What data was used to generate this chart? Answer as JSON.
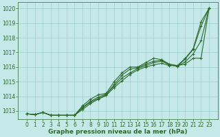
{
  "x": [
    0,
    1,
    2,
    3,
    4,
    5,
    6,
    7,
    8,
    9,
    10,
    11,
    12,
    13,
    14,
    15,
    16,
    17,
    18,
    19,
    20,
    21,
    22,
    23
  ],
  "line1": [
    1012.8,
    1012.75,
    1012.9,
    1012.7,
    1012.7,
    1012.7,
    1012.7,
    1013.35,
    1013.8,
    1014.1,
    1014.2,
    1015.0,
    1015.6,
    1016.0,
    1016.0,
    1016.3,
    1016.6,
    1016.5,
    1016.2,
    1016.1,
    1016.6,
    1017.25,
    1019.1,
    1020.0
  ],
  "line2": [
    1012.8,
    1012.75,
    1012.9,
    1012.7,
    1012.7,
    1012.7,
    1012.7,
    1013.2,
    1013.6,
    1013.85,
    1014.1,
    1014.8,
    1015.45,
    1015.85,
    1015.95,
    1016.2,
    1016.4,
    1016.45,
    1016.15,
    1016.05,
    1016.55,
    1017.2,
    1018.8,
    1020.0
  ],
  "line3": [
    1012.8,
    1012.75,
    1012.9,
    1012.7,
    1012.7,
    1012.7,
    1012.7,
    1013.1,
    1013.5,
    1013.8,
    1014.05,
    1014.6,
    1015.05,
    1015.5,
    1015.8,
    1016.0,
    1016.15,
    1016.25,
    1016.1,
    1016.1,
    1016.2,
    1016.6,
    1016.6,
    1020.0
  ],
  "line4": [
    1012.8,
    1012.75,
    1012.9,
    1012.7,
    1012.7,
    1012.7,
    1012.7,
    1013.25,
    1013.65,
    1013.95,
    1014.15,
    1014.7,
    1015.25,
    1015.6,
    1015.9,
    1016.1,
    1016.3,
    1016.4,
    1016.15,
    1016.05,
    1016.35,
    1016.9,
    1017.8,
    1020.0
  ],
  "line_color": "#2d6a2d",
  "marker": "+",
  "markersize": 3,
  "markeredgewidth": 0.8,
  "linewidth": 0.8,
  "xlabel": "Graphe pression niveau de la mer (hPa)",
  "ylim": [
    1012.45,
    1020.45
  ],
  "yticks": [
    1013,
    1014,
    1015,
    1016,
    1017,
    1018,
    1019,
    1020
  ],
  "xticks": [
    0,
    1,
    2,
    3,
    4,
    5,
    6,
    7,
    8,
    9,
    10,
    11,
    12,
    13,
    14,
    15,
    16,
    17,
    18,
    19,
    20,
    21,
    22,
    23
  ],
  "bg_color": "#c5e8e8",
  "grid_color": "#9ecece",
  "text_color": "#2d6a2d",
  "tick_fontsize": 5.5,
  "xlabel_fontsize": 6.5
}
